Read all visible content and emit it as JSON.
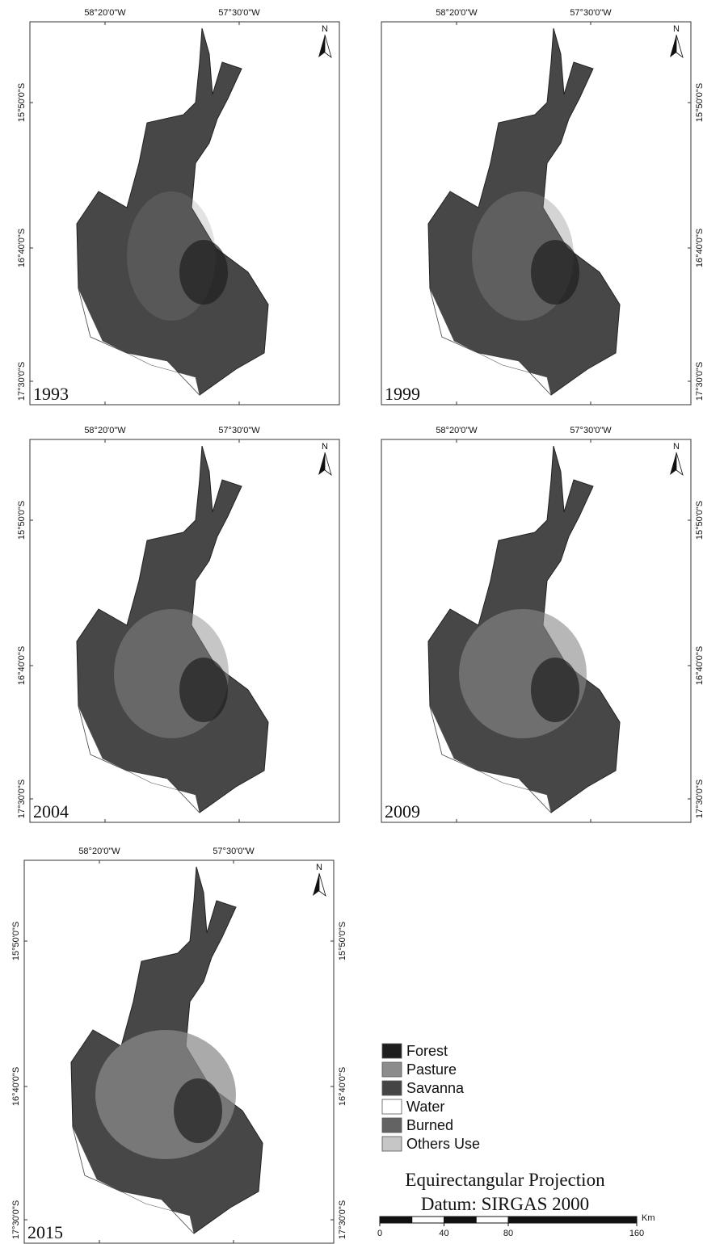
{
  "panels": [
    {
      "year": "1993",
      "x_labels": [
        "58°20'0\"W",
        "57°30'0\"W"
      ],
      "y_labels_left": [
        "15°50'0\"S",
        "16°40'0\"S",
        "17°30'0\"S"
      ]
    },
    {
      "year": "1999",
      "x_labels": [
        "58°20'0\"W",
        "57°30'0\"W"
      ],
      "y_labels_right": [
        "15°50'0\"S",
        "16°40'0\"S",
        "17°30'0\"S"
      ]
    },
    {
      "year": "2004",
      "x_labels": [
        "58°20'0\"W",
        "57°30'0\"W"
      ],
      "y_labels_left": [
        "15°50'0\"S",
        "16°40'0\"S",
        "17°30'0\"S"
      ]
    },
    {
      "year": "2009",
      "x_labels": [
        "58°20'0\"W",
        "57°30'0\"W"
      ],
      "y_labels_right": [
        "15°50'0\"S",
        "16°40'0\"S",
        "17°30'0\"S"
      ]
    },
    {
      "year": "2015",
      "x_labels": [
        "58°20'0\"W",
        "57°30'0\"W"
      ],
      "y_labels_left": [
        "15°50'0\"S",
        "16°40'0\"S",
        "17°30'0\"S"
      ],
      "y_labels_right": [
        "15°50'0\"S",
        "16°40'0\"S",
        "17°30'0\"S"
      ]
    }
  ],
  "north_label": "N",
  "legend": [
    {
      "label": "Forest",
      "color": "#1e1e1e"
    },
    {
      "label": "Pasture",
      "color": "#8c8c8c"
    },
    {
      "label": "Savanna",
      "color": "#454545"
    },
    {
      "label": "Water",
      "color": "#ffffff"
    },
    {
      "label": "Burned",
      "color": "#636363"
    },
    {
      "label": "Others Use",
      "color": "#c6c6c6"
    }
  ],
  "projection": "Equirectangular Projection",
  "datum": "Datum: SIRGAS 2000",
  "scale": {
    "ticks": [
      0,
      40,
      80,
      160
    ],
    "unit": "Km"
  }
}
